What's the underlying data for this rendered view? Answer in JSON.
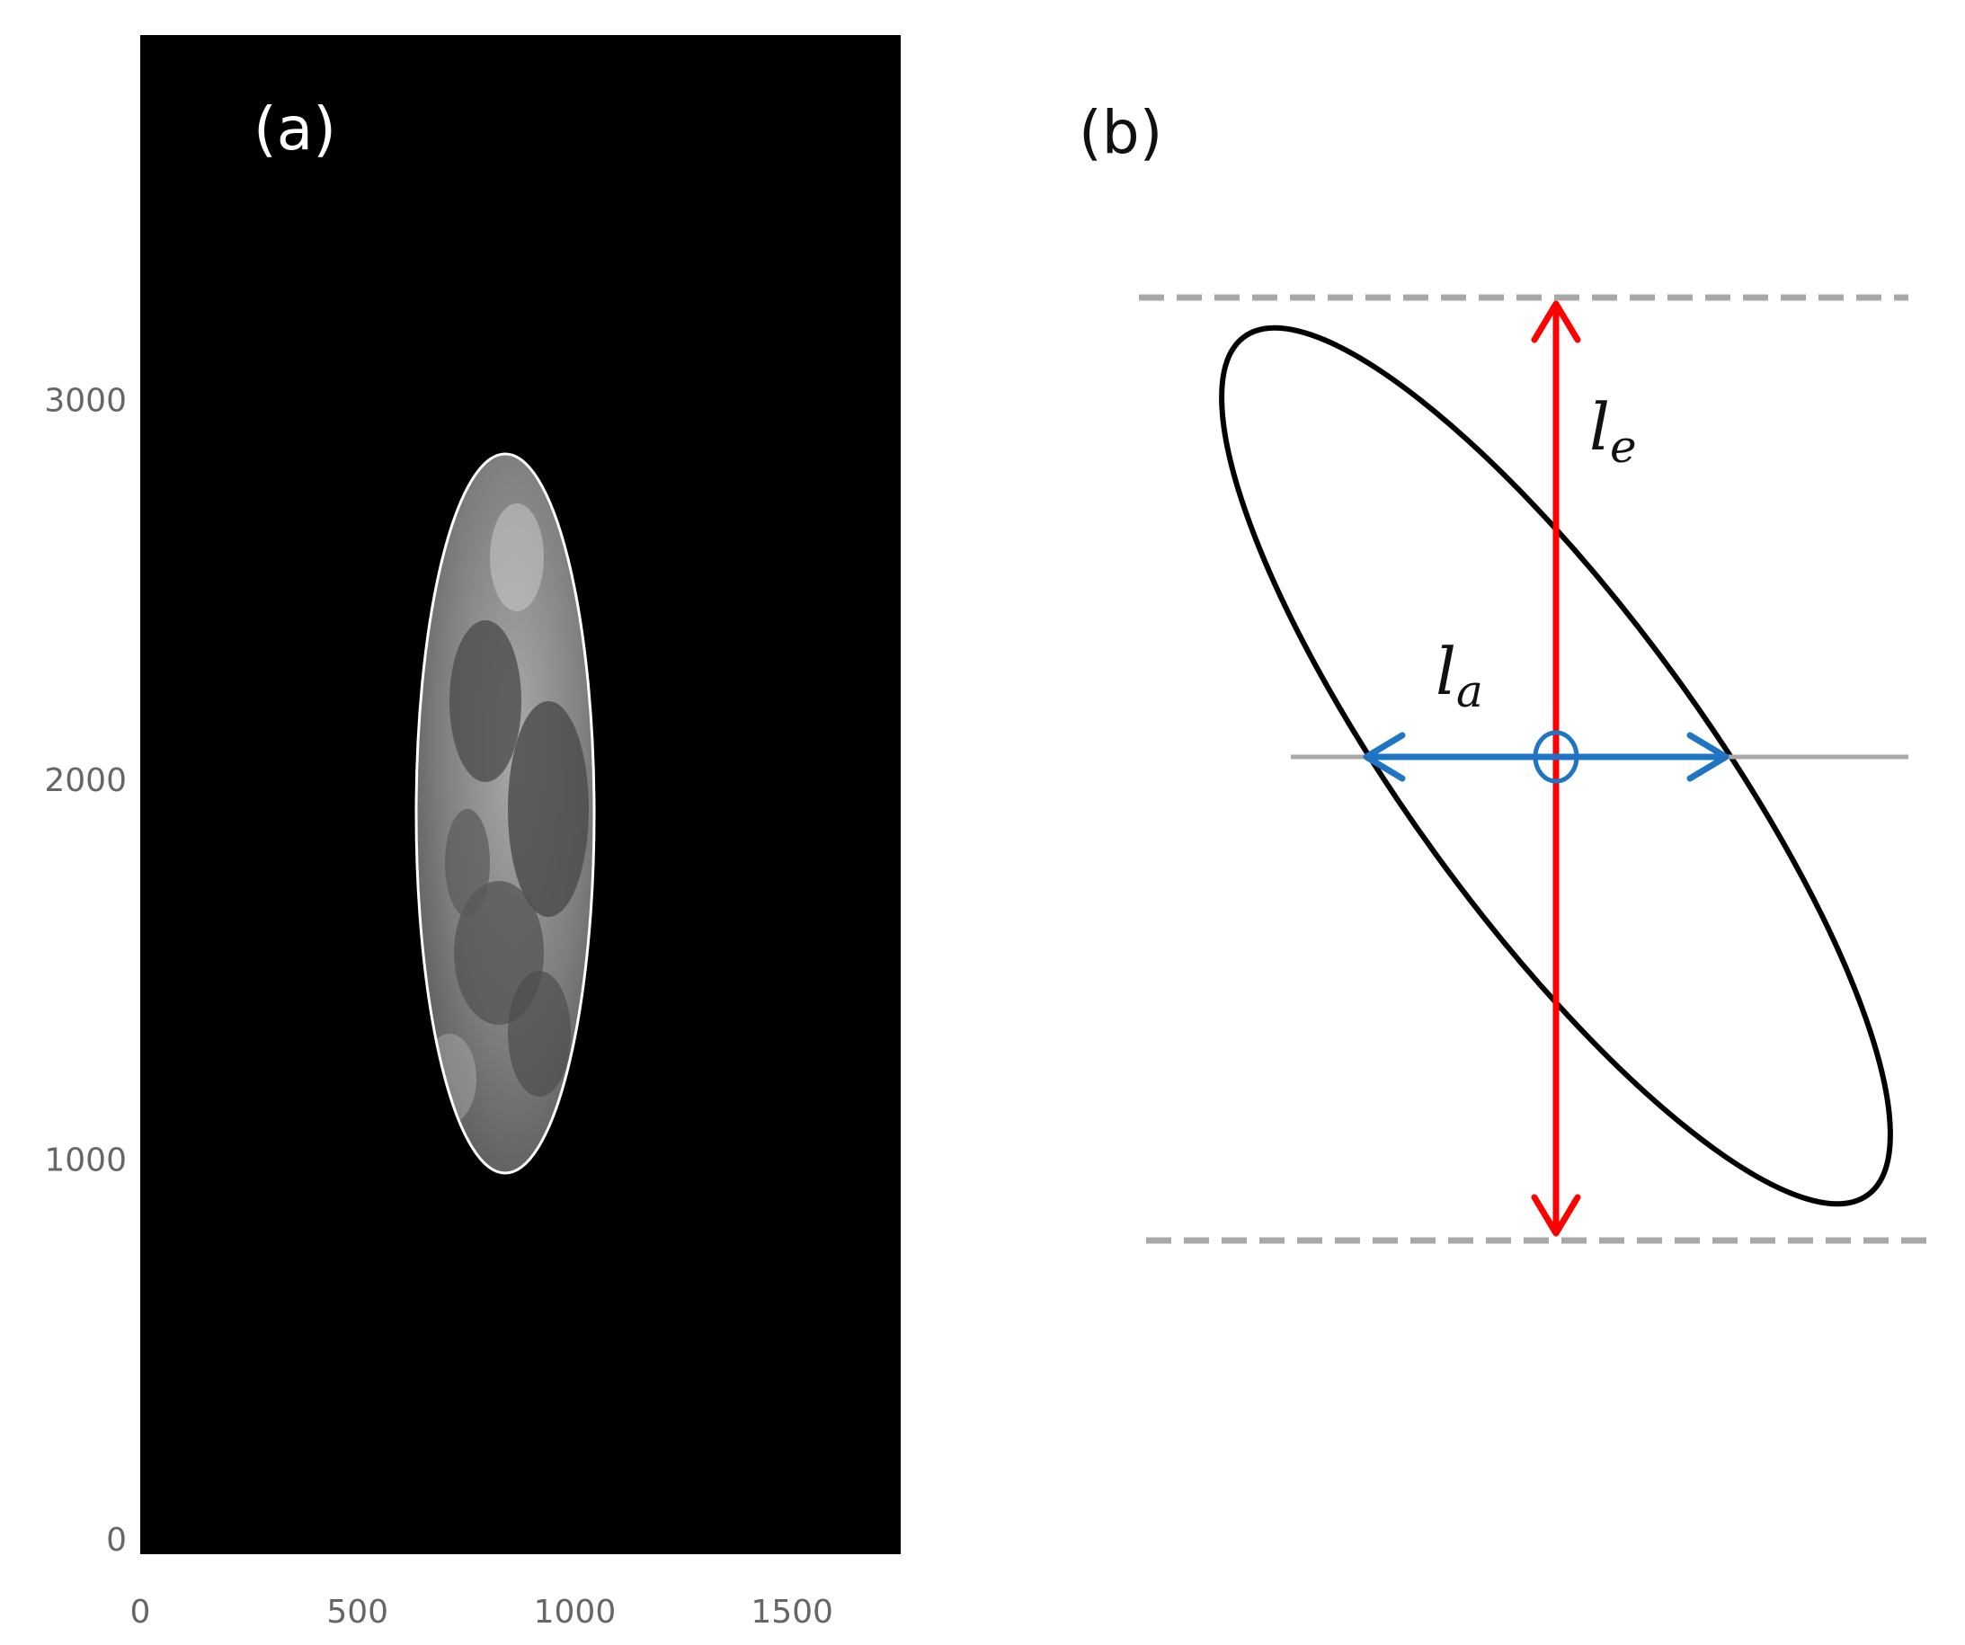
{
  "panel_a": {
    "label": "(a)",
    "xlim": [
      0,
      1750
    ],
    "ylim": [
      0,
      4000
    ],
    "xticks": [
      0,
      500,
      1000,
      1500
    ],
    "yticks": [
      0,
      1000,
      2000,
      3000
    ]
  },
  "panel_b": {
    "label": "(b)",
    "vertical_label": {
      "symbol": "l",
      "subscript": "e"
    },
    "horizontal_label": {
      "symbol": "l",
      "subscript": "a"
    }
  }
}
